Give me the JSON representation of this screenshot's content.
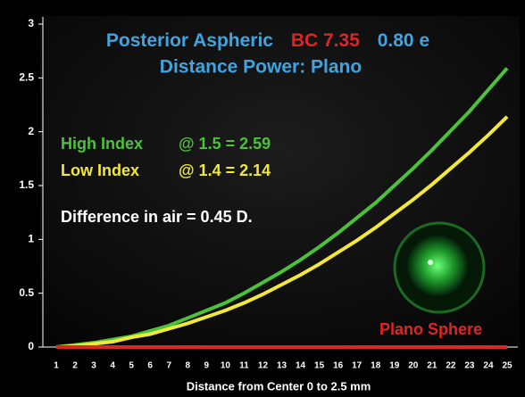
{
  "chart_data": {
    "type": "line",
    "title": [
      "Posterior Aspheric",
      "BC 7.35",
      "0.80 e"
    ],
    "title_colors": [
      "#3fa4e0",
      "#e02424",
      "#3fa4e0"
    ],
    "subtitle": "Distance Power: Plano",
    "xlabel": "Distance from Center 0 to 2.5 mm",
    "annotation": "Difference in air  = 0.45 D.",
    "categories": [
      "1",
      "2",
      "3",
      "4",
      "5",
      "6",
      "7",
      "8",
      "9",
      "10",
      "11",
      "12",
      "13",
      "14",
      "15",
      "16",
      "17",
      "18",
      "19",
      "20",
      "21",
      "22",
      "23",
      "24",
      "25"
    ],
    "series": [
      {
        "name": "High Index",
        "annotation": "@ 1.5 = 2.59",
        "color": "#4cc23a",
        "values": [
          0.0,
          0.02,
          0.04,
          0.07,
          0.1,
          0.15,
          0.2,
          0.27,
          0.34,
          0.41,
          0.5,
          0.6,
          0.7,
          0.81,
          0.93,
          1.06,
          1.2,
          1.34,
          1.5,
          1.66,
          1.83,
          2.01,
          2.19,
          2.39,
          2.59
        ]
      },
      {
        "name": "Low Index",
        "annotation": "@ 1.4 = 2.14",
        "color": "#f2e83a",
        "values": [
          0.0,
          0.01,
          0.03,
          0.05,
          0.09,
          0.12,
          0.17,
          0.22,
          0.28,
          0.34,
          0.41,
          0.49,
          0.58,
          0.67,
          0.77,
          0.88,
          0.99,
          1.11,
          1.24,
          1.37,
          1.51,
          1.66,
          1.81,
          1.97,
          2.14
        ]
      },
      {
        "name": "Plano Sphere",
        "color": "#e02424",
        "values": [
          0,
          0,
          0,
          0,
          0,
          0,
          0,
          0,
          0,
          0,
          0,
          0,
          0,
          0,
          0,
          0,
          0,
          0,
          0,
          0,
          0,
          0,
          0,
          0,
          0
        ]
      }
    ],
    "ylim": [
      0,
      3
    ],
    "yticks": [
      0,
      0.5,
      1,
      1.5,
      2,
      2.5,
      3
    ],
    "grid": false
  }
}
